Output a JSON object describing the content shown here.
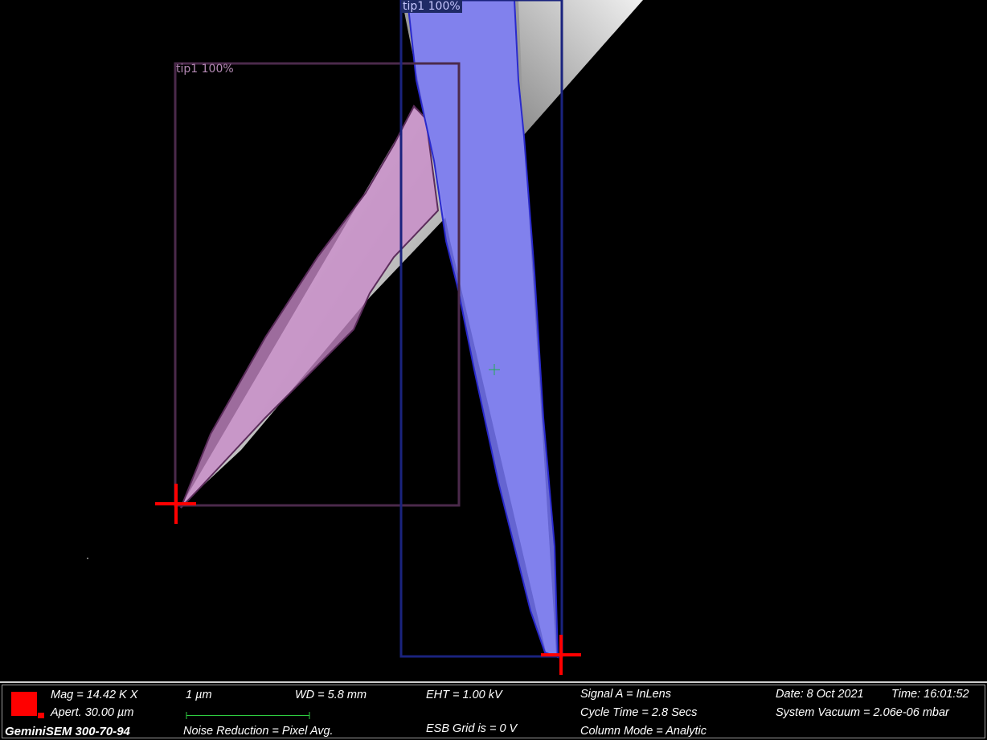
{
  "detections": [
    {
      "label": "tip1 100%",
      "color": "#5c2d5c",
      "fill": "#c98bc9"
    },
    {
      "label": "tip1 100%",
      "color": "#1f2a80",
      "fill": "#7b7bff"
    }
  ],
  "info_bar": {
    "mag": "Mag =   14.42 K X",
    "aperture": "Apert.   30.00 µm",
    "model": "GeminiSEM 300-70-94",
    "scale": "1 µm",
    "wd": "WD =  5.8 mm",
    "noise_reduction": "Noise Reduction = Pixel Avg.",
    "eht": "EHT =  1.00 kV",
    "esb_grid": "ESB Grid is =      0 V",
    "signal": "Signal A = InLens",
    "cycle_time": "Cycle Time = 2.8  Secs",
    "column_mode": "Column Mode = Analytic",
    "date": "Date: 8 Oct 2021",
    "time": "Time: 16:01:52",
    "vacuum": "System Vacuum = 2.06e-06 mbar"
  },
  "colors": {
    "marker": "#ff0000",
    "scale_bar": "#2ecc40",
    "logo": "#ff0000"
  }
}
